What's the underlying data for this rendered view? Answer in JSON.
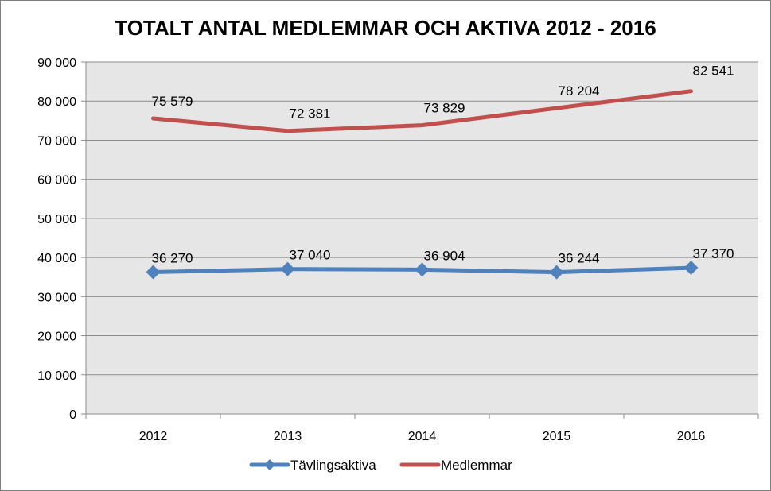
{
  "chart_data": {
    "type": "line",
    "title": "TOTALT ANTAL MEDLEMMAR OCH AKTIVA 2012 - 2016",
    "categories": [
      "2012",
      "2013",
      "2014",
      "2015",
      "2016"
    ],
    "ylim": [
      0,
      90000
    ],
    "yticks": [
      0,
      10000,
      20000,
      30000,
      40000,
      50000,
      60000,
      70000,
      80000,
      90000
    ],
    "ytick_labels": [
      "0",
      "10 000",
      "20 000",
      "30 000",
      "40 000",
      "50 000",
      "60 000",
      "70 000",
      "80 000",
      "90 000"
    ],
    "grid": true,
    "legend_position": "bottom",
    "series": [
      {
        "name": "Tävlingsaktiva",
        "values": [
          36270,
          37040,
          36904,
          36244,
          37370
        ],
        "labels": [
          "36 270",
          "37 040",
          "36 904",
          "36 244",
          "37 370"
        ],
        "color": "#4f81bd",
        "marker": "diamond"
      },
      {
        "name": "Medlemmar",
        "values": [
          75579,
          72381,
          73829,
          78204,
          82541
        ],
        "labels": [
          "75 579",
          "72 381",
          "73 829",
          "78 204",
          "82 541"
        ],
        "color": "#c0504d",
        "marker": "none"
      }
    ]
  }
}
